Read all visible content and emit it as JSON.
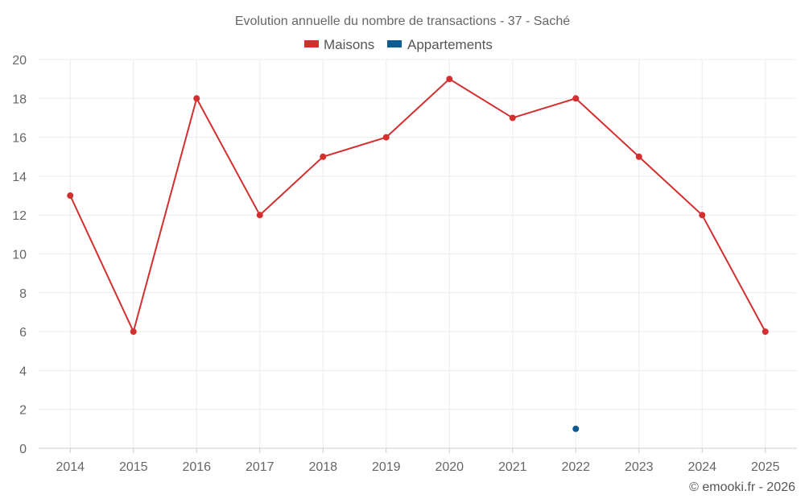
{
  "chart_data": {
    "type": "line",
    "title": "Evolution annuelle du nombre de transactions - 37 - Saché",
    "categories": [
      "2014",
      "2015",
      "2016",
      "2017",
      "2018",
      "2019",
      "2020",
      "2021",
      "2022",
      "2023",
      "2024",
      "2025"
    ],
    "series": [
      {
        "name": "Maisons",
        "color": "#d32f2f",
        "values": [
          13,
          6,
          18,
          12,
          15,
          16,
          19,
          17,
          18,
          15,
          12,
          6
        ]
      },
      {
        "name": "Appartements",
        "color": "#0d5c91",
        "values": [
          null,
          null,
          null,
          null,
          null,
          null,
          null,
          null,
          1,
          null,
          null,
          null
        ]
      }
    ],
    "ylim": [
      0,
      20
    ],
    "yticks": [
      0,
      2,
      4,
      6,
      8,
      10,
      12,
      14,
      16,
      18,
      20
    ],
    "xlabel": "",
    "ylabel": "",
    "grid": true,
    "legend_position": "top-center"
  },
  "credit": "© emooki.fr - 2026"
}
